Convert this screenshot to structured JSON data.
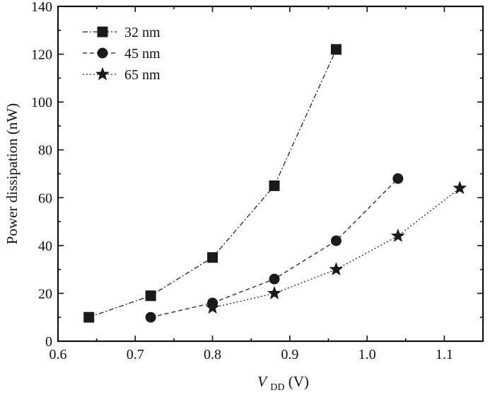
{
  "chart_data": {
    "type": "line",
    "title": "",
    "xlabel_main": "V",
    "xlabel_sub": "DD",
    "xlabel_unit": " (V)",
    "ylabel": "Power dissipation (nW)",
    "xlim": [
      0.6,
      1.15
    ],
    "ylim": [
      0,
      140
    ],
    "xticks": [
      0.6,
      0.7,
      0.8,
      0.9,
      1.0,
      1.1
    ],
    "xtick_labels": [
      "0.6",
      "0.7",
      "0.8",
      "0.9",
      "1.0",
      "1.1"
    ],
    "yticks": [
      0,
      20,
      40,
      60,
      80,
      100,
      120,
      140
    ],
    "ytick_labels": [
      "0",
      "20",
      "40",
      "60",
      "80",
      "100",
      "120",
      "140"
    ],
    "grid": false,
    "legend_position": "top-left",
    "series": [
      {
        "name": "32 nm",
        "marker": "square",
        "dash": "dash-dot",
        "x": [
          0.64,
          0.72,
          0.8,
          0.88,
          0.96
        ],
        "y": [
          10,
          19,
          35,
          65,
          122
        ]
      },
      {
        "name": "45 nm",
        "marker": "circle",
        "dash": "dashed",
        "x": [
          0.72,
          0.8,
          0.88,
          0.96,
          1.04
        ],
        "y": [
          10,
          16,
          26,
          42,
          68
        ]
      },
      {
        "name": "65 nm",
        "marker": "star",
        "dash": "dotted",
        "x": [
          0.8,
          0.88,
          0.96,
          1.04,
          1.12
        ],
        "y": [
          14,
          20,
          30,
          44,
          64
        ]
      }
    ]
  }
}
